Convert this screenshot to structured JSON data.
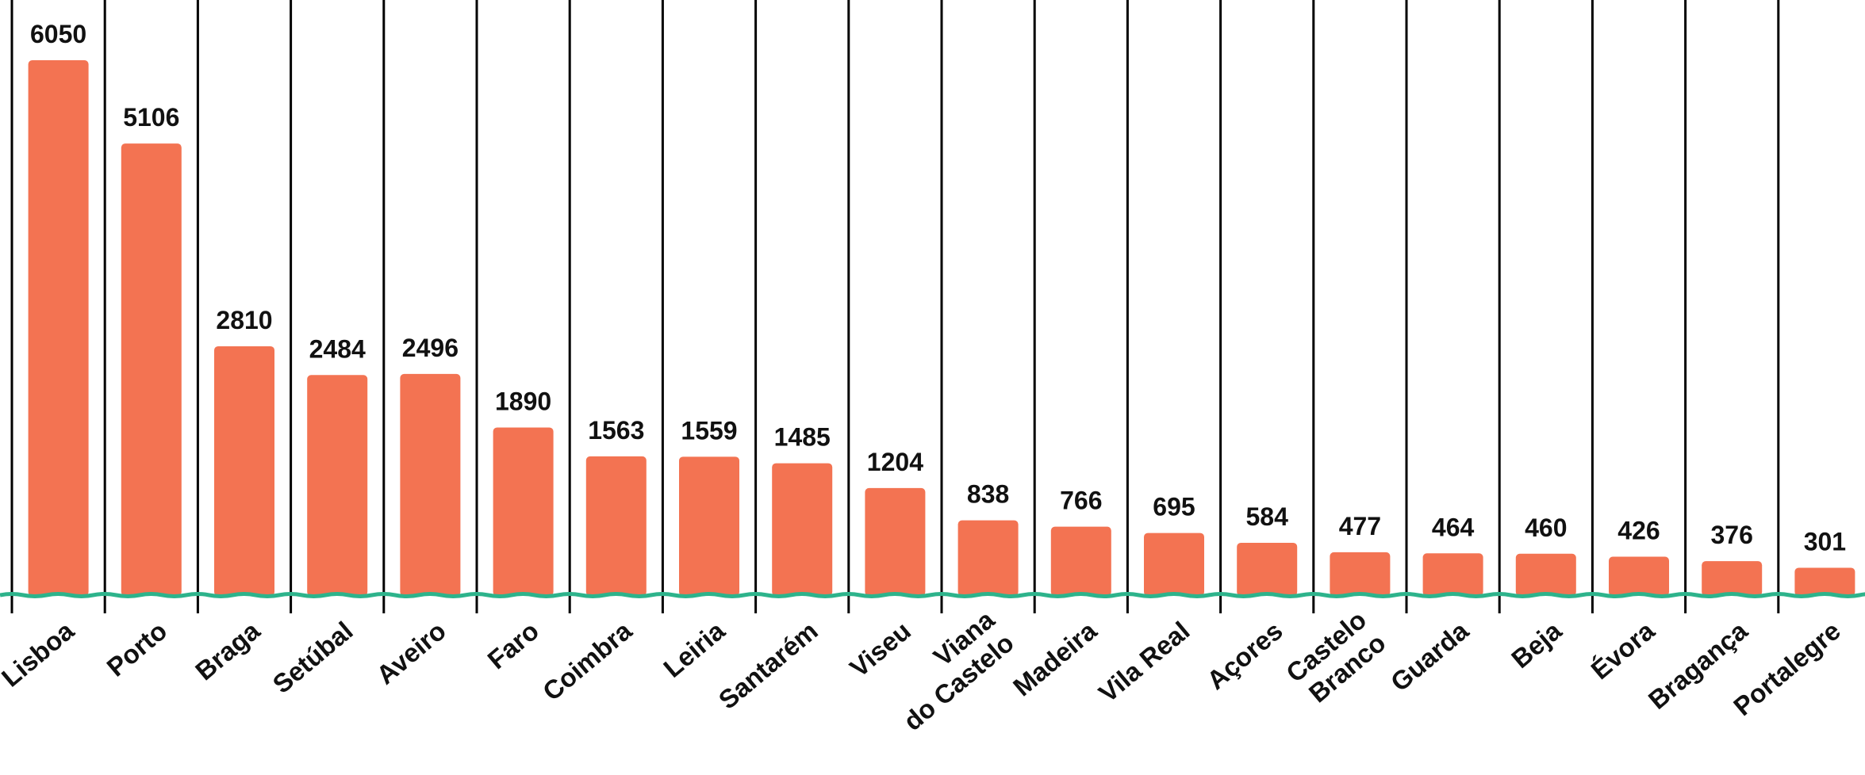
{
  "chart_data": {
    "type": "bar",
    "categories": [
      [
        "Lisboa"
      ],
      [
        "Porto"
      ],
      [
        "Braga"
      ],
      [
        "Setúbal"
      ],
      [
        "Aveiro"
      ],
      [
        "Faro"
      ],
      [
        "Coimbra"
      ],
      [
        "Leiria"
      ],
      [
        "Santarém"
      ],
      [
        "Viseu"
      ],
      [
        "Viana",
        "do Castelo"
      ],
      [
        "Madeira"
      ],
      [
        "Vila Real"
      ],
      [
        "Açores"
      ],
      [
        "Castelo",
        "Branco"
      ],
      [
        "Guarda"
      ],
      [
        "Beja"
      ],
      [
        "Évora"
      ],
      [
        "Bragança"
      ],
      [
        "Portalegre"
      ]
    ],
    "values": [
      6050,
      5106,
      2810,
      2484,
      2496,
      1890,
      1563,
      1559,
      1485,
      1204,
      838,
      766,
      695,
      584,
      477,
      464,
      460,
      426,
      376,
      301
    ],
    "title": "",
    "xlabel": "",
    "ylabel": "",
    "ylim": [
      0,
      6300
    ],
    "grid": "vertical separators",
    "colors": {
      "bar": "#f37352",
      "baseline": "#2db38b",
      "separator": "#000000",
      "text": "#111111"
    }
  }
}
